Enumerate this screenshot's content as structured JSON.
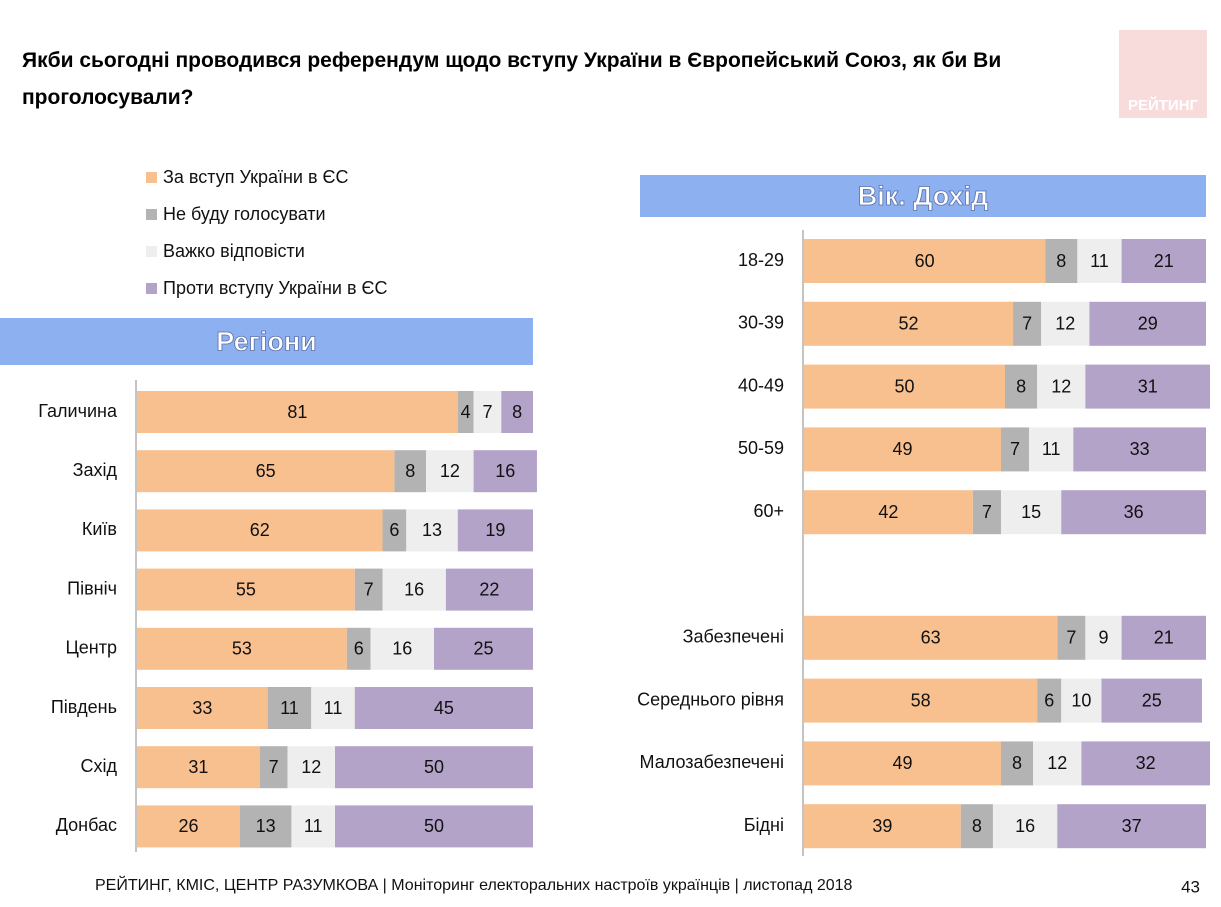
{
  "title": "Якби сьогодні проводився референдум щодо вступу України в Європейський Союз, як би Ви проголосували?",
  "logo": "РЕЙТИНГ",
  "footer": "РЕЙТИНГ, КМІС, ЦЕНТР РАЗУМКОВА |  Моніторинг електоральних настроїв українців | листопад 2018",
  "page_number": "43",
  "legend": [
    {
      "name": "За вступ України в ЄС",
      "color": "#f9c08f"
    },
    {
      "name": "Не буду голосувати",
      "color": "#b3b3b3"
    },
    {
      "name": "Важко відповісти",
      "color": "#eeeeee"
    },
    {
      "name": "Проти вступу України в ЄС",
      "color": "#b3a3c9"
    }
  ],
  "chart_data": [
    {
      "type": "bar",
      "orientation": "horizontal",
      "stacked": true,
      "title": "Регіони",
      "categories": [
        "Галичина",
        "Захід",
        "Київ",
        "Північ",
        "Центр",
        "Південь",
        "Схід",
        "Донбас"
      ],
      "xlim": [
        0,
        100
      ],
      "series": [
        {
          "values": [
            81,
            65,
            62,
            55,
            53,
            33,
            31,
            26
          ]
        },
        {
          "values": [
            4,
            8,
            6,
            7,
            6,
            11,
            7,
            13
          ]
        },
        {
          "values": [
            7,
            12,
            13,
            16,
            16,
            11,
            12,
            11
          ]
        },
        {
          "values": [
            8,
            16,
            19,
            22,
            25,
            45,
            50,
            50
          ]
        }
      ]
    },
    {
      "type": "bar",
      "orientation": "horizontal",
      "stacked": true,
      "title": "Вік. Дохід",
      "categories": [
        "18-29",
        "30-39",
        "40-49",
        "50-59",
        "60+",
        null,
        "Забезпечені",
        "Середнього рівня",
        "Малозабезпечені",
        "Бідні"
      ],
      "xlim": [
        0,
        100
      ],
      "series": [
        {
          "values": [
            60,
            52,
            50,
            49,
            42,
            null,
            63,
            58,
            49,
            39
          ]
        },
        {
          "values": [
            8,
            7,
            8,
            7,
            7,
            null,
            7,
            6,
            8,
            8
          ]
        },
        {
          "values": [
            11,
            12,
            12,
            11,
            15,
            null,
            9,
            10,
            12,
            16
          ]
        },
        {
          "values": [
            21,
            29,
            31,
            33,
            36,
            null,
            21,
            25,
            32,
            37
          ]
        }
      ]
    }
  ]
}
